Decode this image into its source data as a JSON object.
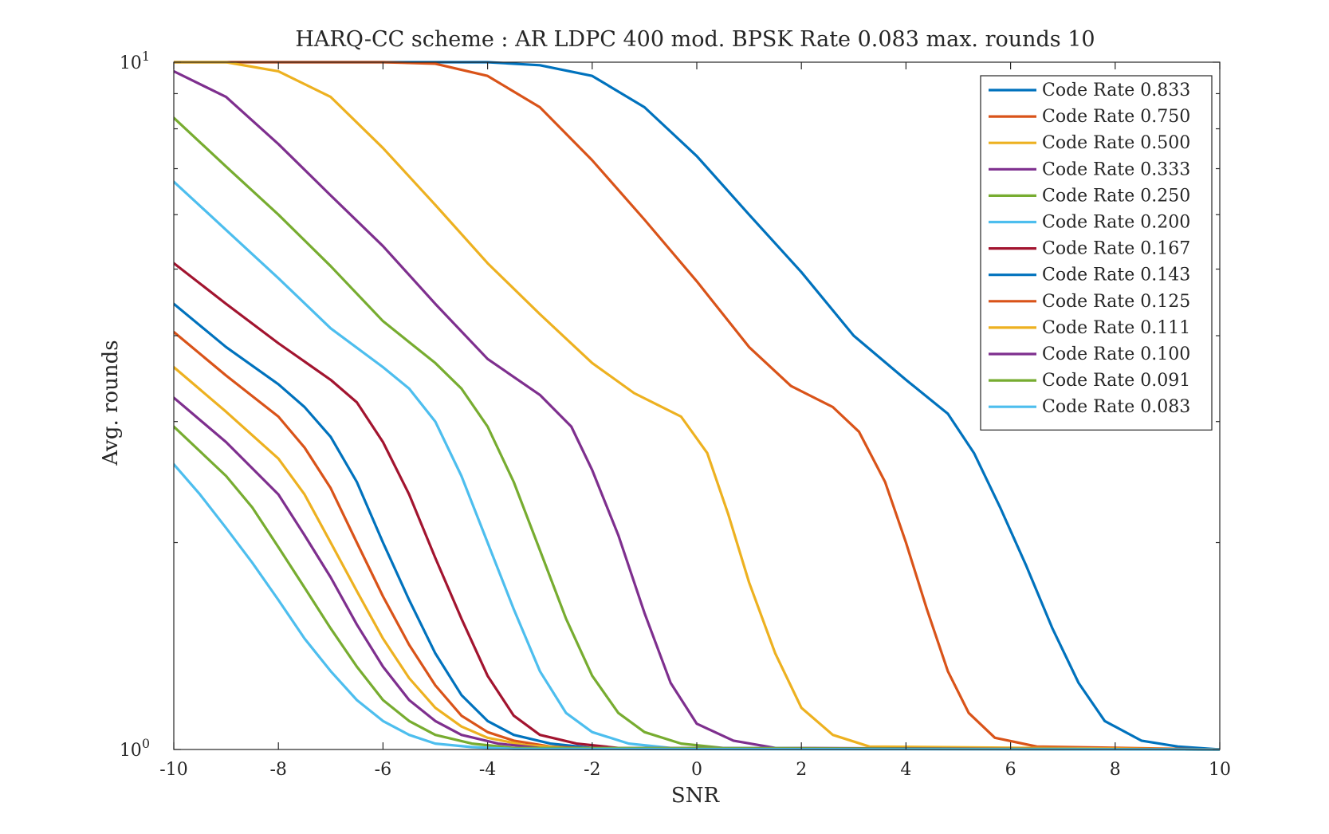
{
  "chart_data": {
    "type": "line",
    "title": "HARQ-CC scheme : AR LDPC 400 mod. BPSK Rate 0.083 max. rounds 10",
    "xlabel": "SNR",
    "ylabel": "Avg. rounds",
    "xlim": [
      -10,
      10
    ],
    "ylim": [
      1,
      10
    ],
    "yscale": "log",
    "x_ticks": [
      "-10",
      "-8",
      "-6",
      "-4",
      "-2",
      "0",
      "2",
      "4",
      "6",
      "8",
      "10"
    ],
    "y_tick_labels": [
      {
        "base": "10",
        "exp": "0",
        "value": 1
      },
      {
        "base": "10",
        "exp": "1",
        "value": 10
      }
    ],
    "grid": false,
    "legend_position": "top-right",
    "series": [
      {
        "name": "Code Rate 0.833",
        "color": "#0072BD",
        "points": [
          [
            -10,
            10
          ],
          [
            -4,
            10
          ],
          [
            -3,
            9.9
          ],
          [
            -2,
            9.55
          ],
          [
            -1,
            8.6
          ],
          [
            0,
            7.3
          ],
          [
            1,
            6.0
          ],
          [
            2,
            4.95
          ],
          [
            3,
            4.0
          ],
          [
            4,
            3.45
          ],
          [
            4.8,
            3.08
          ],
          [
            5.3,
            2.7
          ],
          [
            5.8,
            2.25
          ],
          [
            6.3,
            1.85
          ],
          [
            6.8,
            1.5
          ],
          [
            7.3,
            1.25
          ],
          [
            7.8,
            1.1
          ],
          [
            8.5,
            1.03
          ],
          [
            9.2,
            1.01
          ],
          [
            10,
            1.0
          ]
        ]
      },
      {
        "name": "Code Rate 0.750",
        "color": "#D95319",
        "points": [
          [
            -10,
            10
          ],
          [
            -6,
            10
          ],
          [
            -5,
            9.95
          ],
          [
            -4,
            9.55
          ],
          [
            -3,
            8.6
          ],
          [
            -2,
            7.2
          ],
          [
            -1,
            5.9
          ],
          [
            0,
            4.8
          ],
          [
            1,
            3.85
          ],
          [
            1.8,
            3.38
          ],
          [
            2.6,
            3.15
          ],
          [
            3.1,
            2.9
          ],
          [
            3.6,
            2.45
          ],
          [
            4,
            2.0
          ],
          [
            4.4,
            1.6
          ],
          [
            4.8,
            1.3
          ],
          [
            5.2,
            1.13
          ],
          [
            5.7,
            1.04
          ],
          [
            6.5,
            1.01
          ],
          [
            10,
            1.0
          ]
        ]
      },
      {
        "name": "Code Rate 0.500",
        "color": "#EDB120",
        "points": [
          [
            -10,
            10
          ],
          [
            -9,
            10
          ],
          [
            -8,
            9.7
          ],
          [
            -7,
            8.9
          ],
          [
            -6,
            7.5
          ],
          [
            -5,
            6.2
          ],
          [
            -4,
            5.1
          ],
          [
            -3,
            4.3
          ],
          [
            -2,
            3.65
          ],
          [
            -1.2,
            3.3
          ],
          [
            -0.3,
            3.05
          ],
          [
            0.2,
            2.7
          ],
          [
            0.6,
            2.2
          ],
          [
            1,
            1.75
          ],
          [
            1.5,
            1.38
          ],
          [
            2,
            1.15
          ],
          [
            2.6,
            1.05
          ],
          [
            3.3,
            1.01
          ],
          [
            10,
            1.0
          ]
        ]
      },
      {
        "name": "Code Rate 0.333",
        "color": "#7E2F8E",
        "points": [
          [
            -10,
            9.7
          ],
          [
            -9,
            8.9
          ],
          [
            -8,
            7.6
          ],
          [
            -7,
            6.4
          ],
          [
            -6,
            5.4
          ],
          [
            -5,
            4.45
          ],
          [
            -4,
            3.7
          ],
          [
            -3,
            3.28
          ],
          [
            -2.4,
            2.95
          ],
          [
            -2,
            2.55
          ],
          [
            -1.5,
            2.05
          ],
          [
            -1,
            1.58
          ],
          [
            -0.5,
            1.25
          ],
          [
            0,
            1.09
          ],
          [
            0.7,
            1.03
          ],
          [
            1.5,
            1.005
          ],
          [
            10,
            1.0
          ]
        ]
      },
      {
        "name": "Code Rate 0.250",
        "color": "#77AC30",
        "points": [
          [
            -10,
            8.3
          ],
          [
            -9,
            7.05
          ],
          [
            -8,
            6.0
          ],
          [
            -7,
            5.05
          ],
          [
            -6,
            4.2
          ],
          [
            -5,
            3.65
          ],
          [
            -4.5,
            3.35
          ],
          [
            -4,
            2.95
          ],
          [
            -3.5,
            2.45
          ],
          [
            -3,
            1.95
          ],
          [
            -2.5,
            1.55
          ],
          [
            -2,
            1.28
          ],
          [
            -1.5,
            1.13
          ],
          [
            -1,
            1.06
          ],
          [
            -0.3,
            1.02
          ],
          [
            0.5,
            1.005
          ],
          [
            10,
            1.0
          ]
        ]
      },
      {
        "name": "Code Rate 0.200",
        "color": "#4DBEEE",
        "points": [
          [
            -10,
            6.7
          ],
          [
            -9,
            5.7
          ],
          [
            -8,
            4.85
          ],
          [
            -7,
            4.1
          ],
          [
            -6,
            3.6
          ],
          [
            -5.5,
            3.35
          ],
          [
            -5,
            3.0
          ],
          [
            -4.5,
            2.5
          ],
          [
            -4,
            2.0
          ],
          [
            -3.5,
            1.6
          ],
          [
            -3,
            1.3
          ],
          [
            -2.5,
            1.13
          ],
          [
            -2,
            1.06
          ],
          [
            -1.3,
            1.02
          ],
          [
            -0.5,
            1.005
          ],
          [
            10,
            1.0
          ]
        ]
      },
      {
        "name": "Code Rate 0.167",
        "color": "#A2142F",
        "points": [
          [
            -10,
            5.1
          ],
          [
            -9,
            4.45
          ],
          [
            -8,
            3.9
          ],
          [
            -7,
            3.45
          ],
          [
            -6.5,
            3.2
          ],
          [
            -6,
            2.8
          ],
          [
            -5.5,
            2.35
          ],
          [
            -5,
            1.9
          ],
          [
            -4.5,
            1.55
          ],
          [
            -4,
            1.28
          ],
          [
            -3.5,
            1.12
          ],
          [
            -3,
            1.05
          ],
          [
            -2.3,
            1.02
          ],
          [
            -1.5,
            1.005
          ],
          [
            10,
            1.0
          ]
        ]
      },
      {
        "name": "Code Rate 0.143",
        "color": "#0072BD",
        "points": [
          [
            -10,
            4.45
          ],
          [
            -9,
            3.85
          ],
          [
            -8,
            3.4
          ],
          [
            -7.5,
            3.15
          ],
          [
            -7,
            2.85
          ],
          [
            -6.5,
            2.45
          ],
          [
            -6,
            2.0
          ],
          [
            -5.5,
            1.65
          ],
          [
            -5,
            1.38
          ],
          [
            -4.5,
            1.2
          ],
          [
            -4,
            1.1
          ],
          [
            -3.5,
            1.05
          ],
          [
            -2.8,
            1.02
          ],
          [
            -2,
            1.005
          ],
          [
            10,
            1.0
          ]
        ]
      },
      {
        "name": "Code Rate 0.125",
        "color": "#D95319",
        "points": [
          [
            -10,
            4.05
          ],
          [
            -9,
            3.5
          ],
          [
            -8,
            3.05
          ],
          [
            -7.5,
            2.75
          ],
          [
            -7,
            2.4
          ],
          [
            -6.5,
            2.0
          ],
          [
            -6,
            1.67
          ],
          [
            -5.5,
            1.42
          ],
          [
            -5,
            1.24
          ],
          [
            -4.5,
            1.12
          ],
          [
            -4,
            1.06
          ],
          [
            -3.5,
            1.03
          ],
          [
            -2.8,
            1.01
          ],
          [
            -2,
            1.003
          ],
          [
            10,
            1.0
          ]
        ]
      },
      {
        "name": "Code Rate 0.111",
        "color": "#EDB120",
        "points": [
          [
            -10,
            3.6
          ],
          [
            -9,
            3.1
          ],
          [
            -8,
            2.65
          ],
          [
            -7.5,
            2.35
          ],
          [
            -7,
            2.0
          ],
          [
            -6.5,
            1.7
          ],
          [
            -6,
            1.45
          ],
          [
            -5.5,
            1.27
          ],
          [
            -5,
            1.15
          ],
          [
            -4.5,
            1.08
          ],
          [
            -4,
            1.04
          ],
          [
            -3.3,
            1.015
          ],
          [
            -2.5,
            1.005
          ],
          [
            10,
            1.0
          ]
        ]
      },
      {
        "name": "Code Rate 0.100",
        "color": "#7E2F8E",
        "points": [
          [
            -10,
            3.25
          ],
          [
            -9,
            2.8
          ],
          [
            -8,
            2.35
          ],
          [
            -7.5,
            2.05
          ],
          [
            -7,
            1.78
          ],
          [
            -6.5,
            1.52
          ],
          [
            -6,
            1.32
          ],
          [
            -5.5,
            1.18
          ],
          [
            -5,
            1.1
          ],
          [
            -4.5,
            1.05
          ],
          [
            -3.8,
            1.02
          ],
          [
            -3,
            1.005
          ],
          [
            10,
            1.0
          ]
        ]
      },
      {
        "name": "Code Rate 0.091",
        "color": "#77AC30",
        "points": [
          [
            -10,
            2.95
          ],
          [
            -9,
            2.5
          ],
          [
            -8.5,
            2.25
          ],
          [
            -8,
            1.97
          ],
          [
            -7.5,
            1.72
          ],
          [
            -7,
            1.5
          ],
          [
            -6.5,
            1.32
          ],
          [
            -6,
            1.18
          ],
          [
            -5.5,
            1.1
          ],
          [
            -5,
            1.05
          ],
          [
            -4.3,
            1.02
          ],
          [
            -3.5,
            1.005
          ],
          [
            10,
            1.0
          ]
        ]
      },
      {
        "name": "Code Rate 0.083",
        "color": "#4DBEEE",
        "points": [
          [
            -10,
            2.6
          ],
          [
            -9.5,
            2.35
          ],
          [
            -9,
            2.1
          ],
          [
            -8.5,
            1.87
          ],
          [
            -8,
            1.65
          ],
          [
            -7.5,
            1.45
          ],
          [
            -7,
            1.3
          ],
          [
            -6.5,
            1.18
          ],
          [
            -6,
            1.1
          ],
          [
            -5.5,
            1.05
          ],
          [
            -5,
            1.02
          ],
          [
            -4.3,
            1.008
          ],
          [
            -3.5,
            1.002
          ],
          [
            10,
            1.0
          ]
        ]
      }
    ]
  }
}
